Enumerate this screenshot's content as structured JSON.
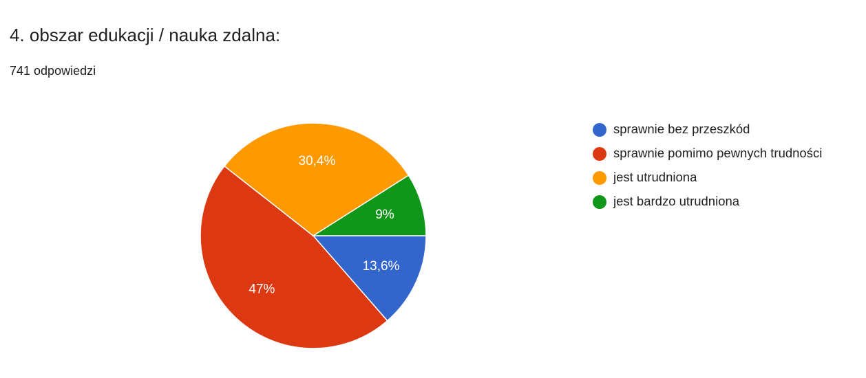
{
  "chart_data": {
    "type": "pie",
    "title": "4. obszar edukacji / nauka zdalna:",
    "subtitle": "741 odpowiedzi",
    "categories": [
      "sprawnie bez przeszkód",
      "sprawnie pomimo pewnych trudności",
      "jest utrudniona",
      "jest bardzo utrudniona"
    ],
    "values": [
      13.6,
      47,
      30.4,
      9
    ],
    "value_labels": [
      "13,6%",
      "47%",
      "30,4%",
      "9%"
    ],
    "colors": [
      "#3366cc",
      "#dc3912",
      "#ff9900",
      "#109618"
    ]
  }
}
